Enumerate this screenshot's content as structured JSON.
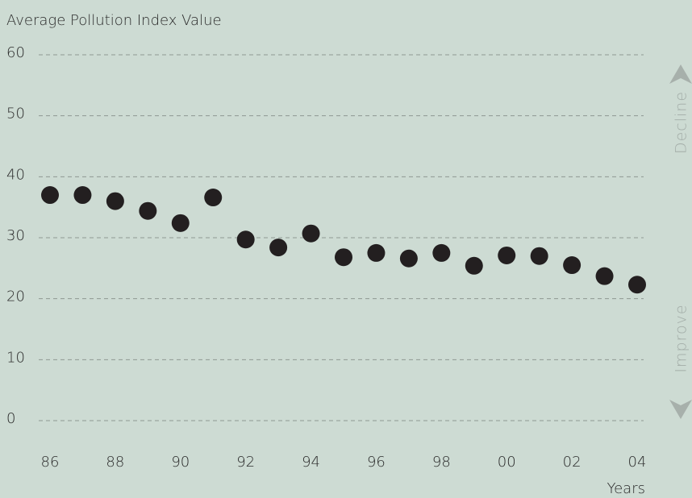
{
  "chart_data": {
    "type": "scatter",
    "y_label": "Average Pollution Index Value",
    "x_label": "Years",
    "annotations": [
      "Decline",
      "Improve"
    ],
    "categories": [
      "86",
      null,
      "88",
      null,
      "90",
      null,
      "92",
      null,
      "94",
      null,
      "96",
      null,
      "98",
      null,
      "00",
      null,
      "02",
      null,
      "04"
    ],
    "values": [
      37,
      37,
      36,
      34.4,
      32.4,
      36.6,
      29.7,
      28.4,
      30.7,
      26.8,
      27.5,
      26.6,
      27.5,
      25.4,
      27.1,
      27,
      25.5,
      23.7,
      22.3
    ],
    "color": "#231f20",
    "ylim": [
      0,
      60
    ],
    "yticks": [
      0,
      10,
      20,
      30,
      40,
      50,
      60
    ],
    "grid": true
  }
}
